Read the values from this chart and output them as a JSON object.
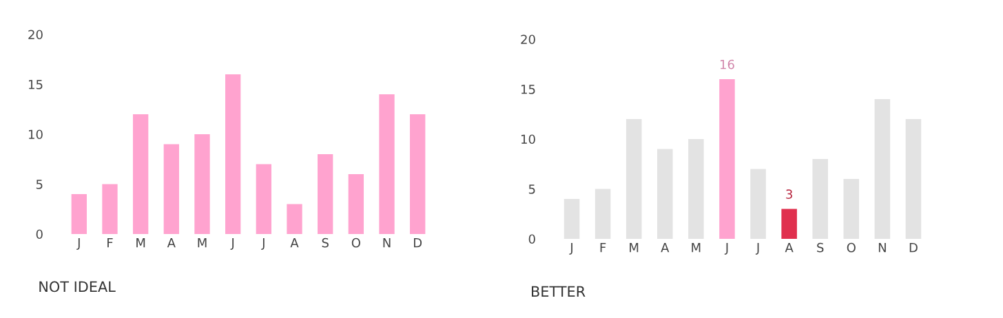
{
  "chart_data": [
    {
      "type": "bar",
      "title": "NOT IDEAL",
      "categories": [
        "J",
        "F",
        "M",
        "A",
        "M",
        "J",
        "J",
        "A",
        "S",
        "O",
        "N",
        "D"
      ],
      "values": [
        4,
        5,
        12,
        9,
        10,
        16,
        7,
        3,
        8,
        6,
        14,
        12
      ],
      "color": "#ffa3cf",
      "ylim": [
        0,
        20
      ],
      "yticks": [
        0,
        5,
        10,
        15,
        20
      ],
      "grid": false
    },
    {
      "type": "bar",
      "title": "BETTER",
      "categories": [
        "J",
        "F",
        "M",
        "A",
        "M",
        "J",
        "J",
        "A",
        "S",
        "O",
        "N",
        "D"
      ],
      "values": [
        4,
        5,
        12,
        9,
        10,
        16,
        7,
        3,
        8,
        6,
        14,
        12
      ],
      "colors": [
        "#e3e3e3",
        "#e3e3e3",
        "#e3e3e3",
        "#e3e3e3",
        "#e3e3e3",
        "#ffa3cf",
        "#e3e3e3",
        "#e0304e",
        "#e3e3e3",
        "#e3e3e3",
        "#e3e3e3",
        "#e3e3e3"
      ],
      "value_labels": [
        null,
        null,
        null,
        null,
        null,
        "16",
        null,
        "3",
        null,
        null,
        null,
        null
      ],
      "ylim": [
        0,
        20
      ],
      "yticks": [
        0,
        5,
        10,
        15,
        20
      ],
      "grid": false
    }
  ]
}
